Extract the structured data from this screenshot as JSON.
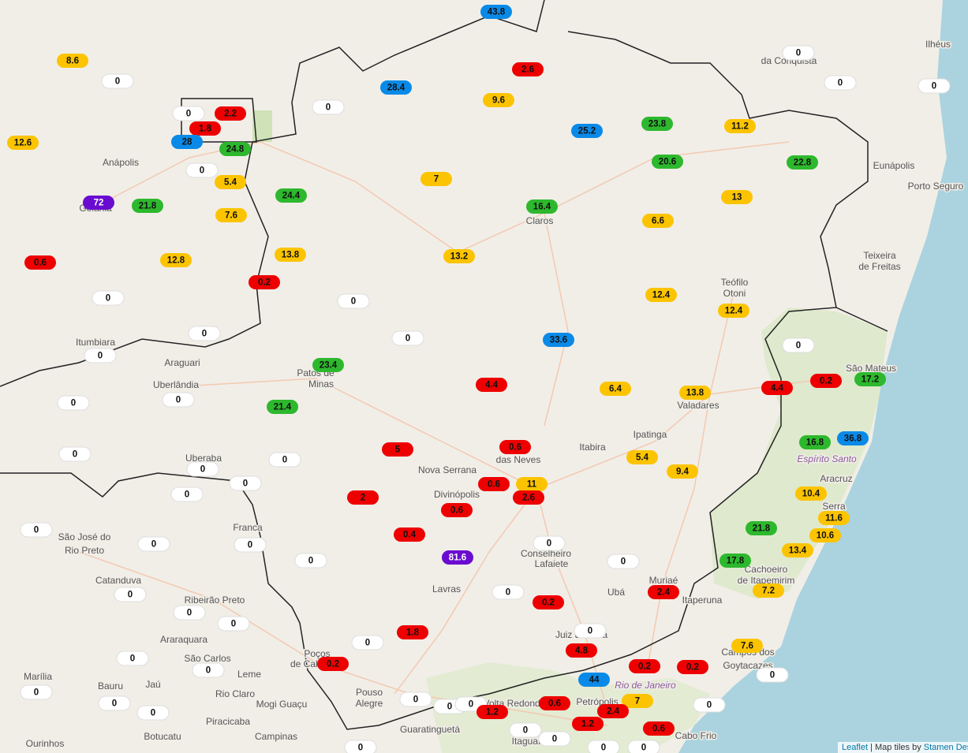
{
  "markers": {
    "values": [
      43.8,
      8.6,
      0,
      2.6,
      0,
      0,
      0,
      28.4,
      0,
      9.6,
      0,
      2.2,
      1.8,
      28,
      24.8,
      12.6,
      25.2,
      23.8,
      11.2,
      0,
      20.6,
      22.8,
      5.4,
      7,
      24.4,
      72,
      21.8,
      16.4,
      13,
      7.6,
      6.6,
      0.6,
      12.8,
      13.8,
      13.2,
      0.2,
      0,
      0,
      12.4,
      12.4,
      0,
      0,
      33.6,
      0,
      0,
      23.4,
      4.4,
      6.4,
      13.8,
      4.4,
      0.2,
      17.2,
      0,
      0,
      21.4,
      16.8,
      36.8,
      5,
      0.6,
      0,
      0,
      5.4,
      0,
      9.4,
      0,
      0.6,
      11,
      2.6,
      0,
      2,
      10.4,
      0.6,
      11.6,
      0,
      21.8,
      0,
      0,
      0.4,
      10.6,
      0,
      13.4,
      81.6,
      0,
      0,
      17.8,
      0,
      0,
      0.2,
      2.4,
      7.2,
      0,
      0,
      1.8,
      0,
      0,
      7.6,
      4.8,
      0,
      0.2,
      0.2,
      0.2,
      0,
      0,
      44,
      0,
      0,
      7,
      0,
      0,
      0,
      0.6,
      0,
      0,
      1.2,
      2.4,
      1.2,
      0.6,
      0,
      0,
      0,
      0,
      0
    ],
    "colors": [
      "#0a8ae8",
      "#fcc400",
      "#ffffff",
      "#ee0000",
      "#ffffff",
      "#ffffff",
      "#ffffff",
      "#0a8ae8",
      "#ffffff",
      "#fcc400",
      "#ffffff",
      "#ee0000",
      "#ee0000",
      "#0a8ae8",
      "#2db82d",
      "#fcc400",
      "#0a8ae8",
      "#2db82d",
      "#fcc400",
      "#ffffff",
      "#2db82d",
      "#2db82d",
      "#fcc400",
      "#fcc400",
      "#2db82d",
      "#6a0cd0",
      "#2db82d",
      "#2db82d",
      "#fcc400",
      "#fcc400",
      "#fcc400",
      "#ee0000",
      "#fcc400",
      "#fcc400",
      "#fcc400",
      "#ee0000",
      "#ffffff",
      "#ffffff",
      "#fcc400",
      "#fcc400",
      "#ffffff",
      "#ffffff",
      "#0a8ae8",
      "#ffffff",
      "#ffffff",
      "#2db82d",
      "#ee0000",
      "#fcc400",
      "#fcc400",
      "#ee0000",
      "#ee0000",
      "#2db82d",
      "#ffffff",
      "#ffffff",
      "#2db82d",
      "#2db82d",
      "#0a8ae8",
      "#ee0000",
      "#ee0000",
      "#ffffff",
      "#ffffff",
      "#fcc400",
      "#ffffff",
      "#fcc400",
      "#ffffff",
      "#ee0000",
      "#fcc400",
      "#ee0000",
      "#ffffff",
      "#ee0000",
      "#fcc400",
      "#ee0000",
      "#fcc400",
      "#ffffff",
      "#2db82d",
      "#ffffff",
      "#ffffff",
      "#ee0000",
      "#fcc400",
      "#ffffff",
      "#fcc400",
      "#6a0cd0",
      "#ffffff",
      "#ffffff",
      "#2db82d",
      "#ffffff",
      "#ffffff",
      "#ee0000",
      "#ee0000",
      "#fcc400",
      "#ffffff",
      "#ffffff",
      "#ee0000",
      "#ffffff",
      "#ffffff",
      "#fcc400",
      "#ee0000",
      "#ffffff",
      "#ee0000",
      "#ee0000",
      "#ee0000",
      "#ffffff",
      "#ffffff",
      "#0a8ae8",
      "#ffffff",
      "#ffffff",
      "#fcc400",
      "#ffffff",
      "#ffffff",
      "#ffffff",
      "#ee0000",
      "#ffffff",
      "#ffffff",
      "#ee0000",
      "#ee0000",
      "#ee0000",
      "#ee0000",
      "#ffffff",
      "#ffffff",
      "#ffffff",
      "#ffffff",
      "#ffffff"
    ]
  },
  "places": [
    "da Conquista",
    "Ilhéus",
    "Eunápolis",
    "Porto Seguro",
    "Teixeira",
    "de Freitas",
    "Anápolis",
    "Goiânia",
    "Claros",
    "Teófilo",
    "Otoni",
    "Itumbiara",
    "Araguari",
    "Uberlândia",
    "Patos de",
    "Minas",
    "São Mateus",
    "Valadares",
    "Ipatinga",
    "Itabira",
    "Uberaba",
    "Nova Serrana",
    "Divinópolis",
    "das Neves",
    "Espírito Santo",
    "Aracruz",
    "Serra",
    "São José do",
    "Rio Preto",
    "Franca",
    "Conselheiro",
    "Lafaiete",
    "Cachoeiro",
    "de Itapemirim",
    "Catanduva",
    "Lavras",
    "Ribeirão Preto",
    "Muriaé",
    "Ubá",
    "Itaperuna",
    "Araraquara",
    "Juiz de Fora",
    "São Carlos",
    "Campos dos",
    "Goytacazes",
    "Poços",
    "de Caldas",
    "Marília",
    "Leme",
    "Rio de Janeiro",
    "Bauru",
    "Jaú",
    "Rio Claro",
    "Pouso",
    "Alegre",
    "Mogi Guaçu",
    "Volta Redonda",
    "Petrópolis",
    "Piracicaba",
    "Guaratinguetá",
    "Botucatu",
    "Campinas",
    "Ourinhos",
    "Itaguaí",
    "Cabo Frio"
  ],
  "attribution": {
    "link": "Leaflet",
    "text": "| Map tiles by",
    "tiles": "Stamen Design"
  }
}
